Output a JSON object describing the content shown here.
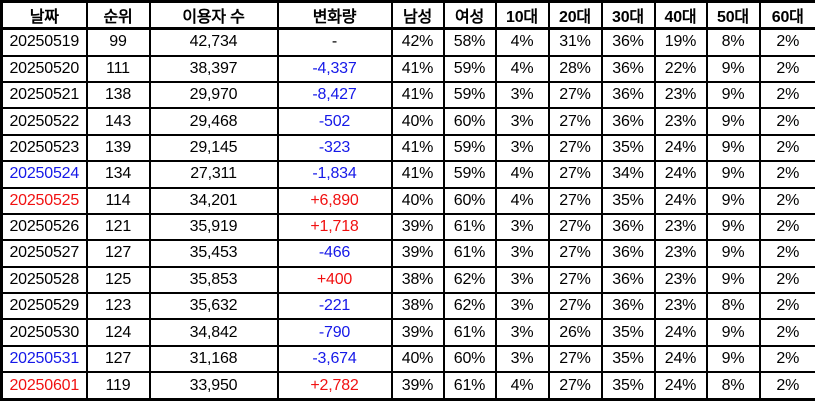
{
  "chart_data": {
    "type": "table",
    "columns": [
      "날짜",
      "순위",
      "이용자 수",
      "변화량",
      "남성",
      "여성",
      "10대",
      "20대",
      "30대",
      "40대",
      "50대",
      "60대"
    ],
    "rows": [
      {
        "date": "20250519",
        "date_color": "none",
        "rank": "99",
        "users": "42,734",
        "change": "-",
        "change_color": "none",
        "pcts": [
          "42%",
          "58%",
          "4%",
          "31%",
          "36%",
          "19%",
          "8%",
          "2%"
        ]
      },
      {
        "date": "20250520",
        "date_color": "none",
        "rank": "111",
        "users": "38,397",
        "change": "-4,337",
        "change_color": "blue",
        "pcts": [
          "41%",
          "59%",
          "4%",
          "28%",
          "36%",
          "22%",
          "9%",
          "2%"
        ]
      },
      {
        "date": "20250521",
        "date_color": "none",
        "rank": "138",
        "users": "29,970",
        "change": "-8,427",
        "change_color": "blue",
        "pcts": [
          "41%",
          "59%",
          "3%",
          "27%",
          "36%",
          "23%",
          "9%",
          "2%"
        ]
      },
      {
        "date": "20250522",
        "date_color": "none",
        "rank": "143",
        "users": "29,468",
        "change": "-502",
        "change_color": "blue",
        "pcts": [
          "40%",
          "60%",
          "3%",
          "27%",
          "36%",
          "23%",
          "9%",
          "2%"
        ]
      },
      {
        "date": "20250523",
        "date_color": "none",
        "rank": "139",
        "users": "29,145",
        "change": "-323",
        "change_color": "blue",
        "pcts": [
          "41%",
          "59%",
          "3%",
          "27%",
          "35%",
          "24%",
          "9%",
          "2%"
        ]
      },
      {
        "date": "20250524",
        "date_color": "blue",
        "rank": "134",
        "users": "27,311",
        "change": "-1,834",
        "change_color": "blue",
        "pcts": [
          "41%",
          "59%",
          "4%",
          "27%",
          "34%",
          "24%",
          "9%",
          "2%"
        ]
      },
      {
        "date": "20250525",
        "date_color": "red",
        "rank": "114",
        "users": "34,201",
        "change": "+6,890",
        "change_color": "red",
        "pcts": [
          "40%",
          "60%",
          "4%",
          "27%",
          "35%",
          "24%",
          "9%",
          "2%"
        ]
      },
      {
        "date": "20250526",
        "date_color": "none",
        "rank": "121",
        "users": "35,919",
        "change": "+1,718",
        "change_color": "red",
        "pcts": [
          "39%",
          "61%",
          "3%",
          "27%",
          "36%",
          "23%",
          "9%",
          "2%"
        ]
      },
      {
        "date": "20250527",
        "date_color": "none",
        "rank": "127",
        "users": "35,453",
        "change": "-466",
        "change_color": "blue",
        "pcts": [
          "39%",
          "61%",
          "3%",
          "27%",
          "36%",
          "23%",
          "9%",
          "2%"
        ]
      },
      {
        "date": "20250528",
        "date_color": "none",
        "rank": "125",
        "users": "35,853",
        "change": "+400",
        "change_color": "red",
        "pcts": [
          "38%",
          "62%",
          "3%",
          "27%",
          "36%",
          "23%",
          "9%",
          "2%"
        ]
      },
      {
        "date": "20250529",
        "date_color": "none",
        "rank": "123",
        "users": "35,632",
        "change": "-221",
        "change_color": "blue",
        "pcts": [
          "38%",
          "62%",
          "3%",
          "27%",
          "36%",
          "23%",
          "8%",
          "2%"
        ]
      },
      {
        "date": "20250530",
        "date_color": "none",
        "rank": "124",
        "users": "34,842",
        "change": "-790",
        "change_color": "blue",
        "pcts": [
          "39%",
          "61%",
          "3%",
          "26%",
          "35%",
          "24%",
          "9%",
          "2%"
        ]
      },
      {
        "date": "20250531",
        "date_color": "blue",
        "rank": "127",
        "users": "31,168",
        "change": "-3,674",
        "change_color": "blue",
        "pcts": [
          "40%",
          "60%",
          "3%",
          "27%",
          "35%",
          "24%",
          "9%",
          "2%"
        ]
      },
      {
        "date": "20250601",
        "date_color": "red",
        "rank": "119",
        "users": "33,950",
        "change": "+2,782",
        "change_color": "red",
        "pcts": [
          "39%",
          "61%",
          "4%",
          "27%",
          "35%",
          "24%",
          "8%",
          "2%"
        ]
      }
    ]
  },
  "colors": {
    "blue": "#1518e8",
    "red": "#f11111",
    "text": "#000000",
    "border": "#000000",
    "background": "#ffffff"
  }
}
